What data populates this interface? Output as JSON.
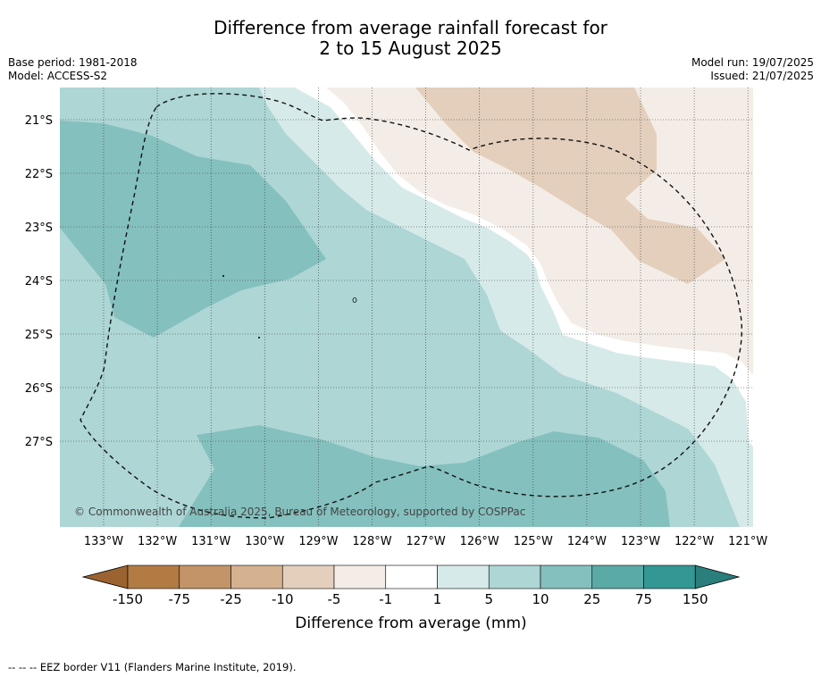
{
  "title": {
    "line1": "Difference from average rainfall forecast for",
    "line2": "2 to 15 August 2025"
  },
  "meta": {
    "base_period": "Base period: 1981-2018",
    "model": "Model: ACCESS-S2",
    "model_run": "Model run: 19/07/2025",
    "issued": "Issued: 21/07/2025"
  },
  "map": {
    "copyright": "© Commonwealth of Australia 2025, Bureau of Meteorology, supported by COSPPac",
    "lat_labels": [
      "21°S",
      "22°S",
      "23°S",
      "24°S",
      "25°S",
      "26°S",
      "27°S"
    ],
    "lon_labels": [
      "133°W",
      "132°W",
      "131°W",
      "130°W",
      "129°W",
      "128°W",
      "127°W",
      "126°W",
      "125°W",
      "124°W",
      "123°W",
      "122°W",
      "121°W"
    ],
    "gridlines": true,
    "boundary_style": "dashed",
    "colors": {
      "wet_10_25": "#84c0be",
      "wet_5_10": "#add6d5",
      "wet_1_5": "#d6eae9",
      "neutral": "#ffffff",
      "dry_-5_-1": "#f4ede7",
      "dry_-10_-5": "#e3cfbc"
    }
  },
  "colorbar": {
    "label": "Difference from average (mm)",
    "ticks": [
      "-150",
      "-75",
      "-25",
      "-10",
      "-5",
      "-1",
      "1",
      "5",
      "10",
      "25",
      "75",
      "150"
    ],
    "colors": [
      "#9b6330",
      "#b27b44",
      "#c39467",
      "#d4b18f",
      "#e3cfbc",
      "#f4ede7",
      "#ffffff",
      "#d6eae9",
      "#add6d5",
      "#84c0be",
      "#5aaaa7",
      "#339794",
      "#2a7e7b"
    ]
  },
  "footnote": "--  --  -- EEZ border V11 (Flanders Marine Institute, 2019)."
}
